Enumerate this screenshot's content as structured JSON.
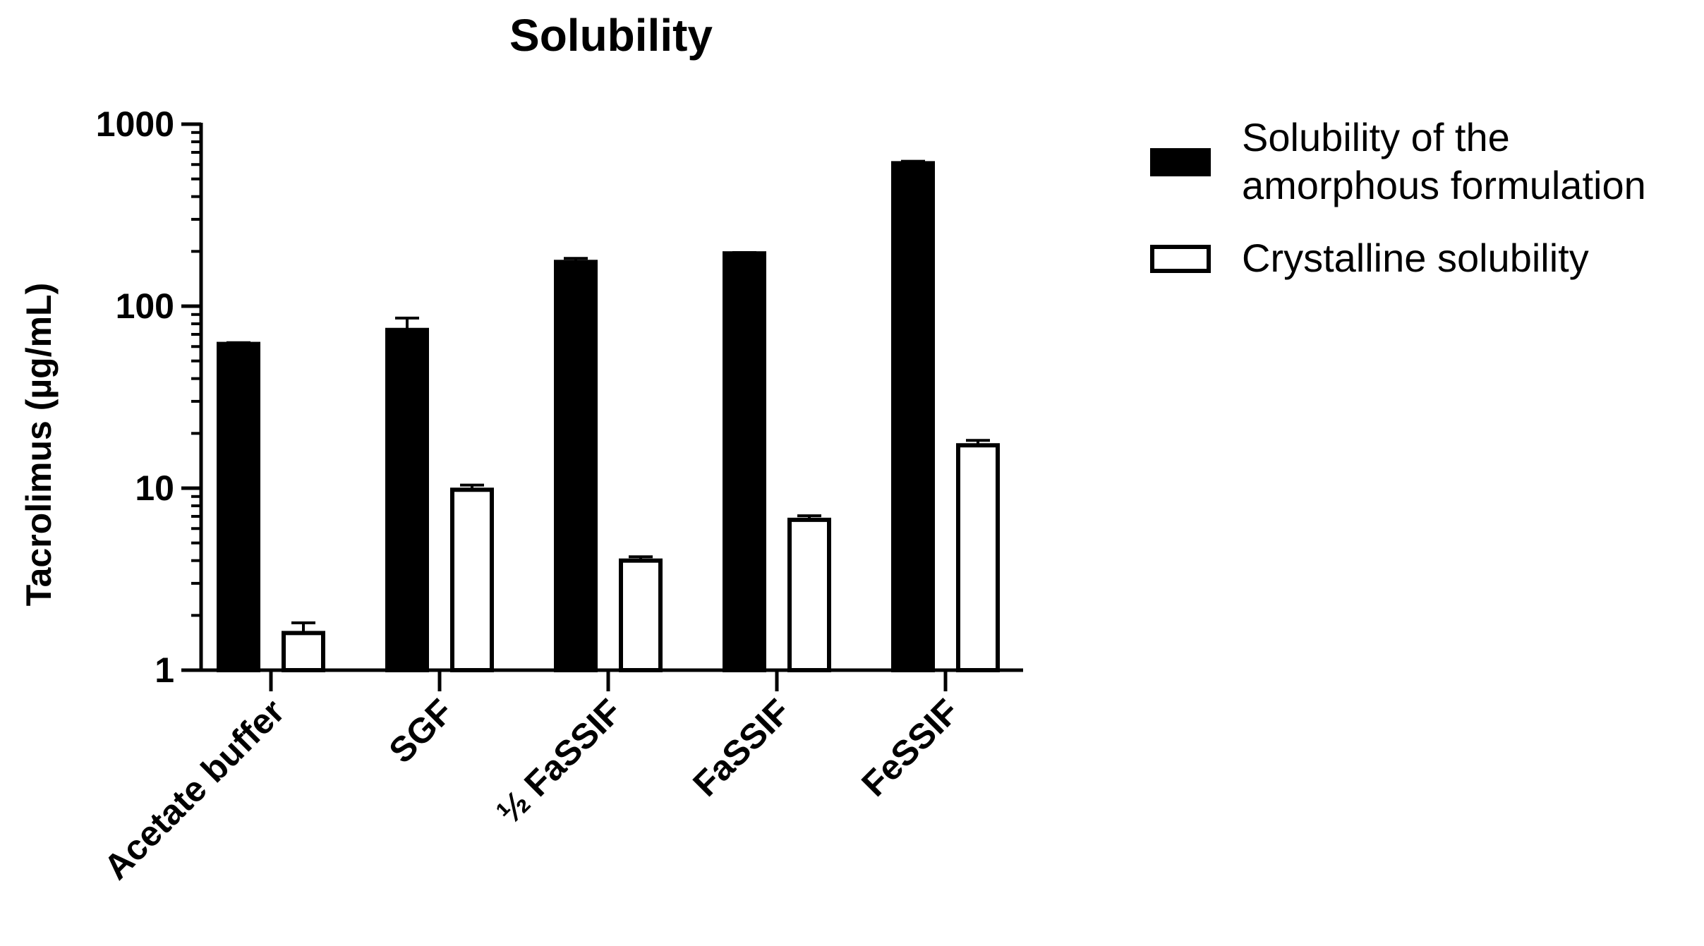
{
  "chart_data": {
    "type": "bar",
    "title": "Solubility",
    "xlabel": "",
    "ylabel": "Tacrolimus (µg/mL)",
    "yscale": "log",
    "ylim": [
      1,
      1000
    ],
    "yticks": [
      1,
      10,
      100,
      1000
    ],
    "ytick_labels": [
      "1",
      "10",
      "100",
      "1000"
    ],
    "grid": false,
    "legend_position": "right",
    "categories": [
      "Acetate buffer",
      "SGF",
      "½ FaSSIF",
      "FaSSIF",
      "FeSSIF"
    ],
    "series": [
      {
        "name": "Solubility of the amorphous formulation",
        "legend_lines": [
          "Solubility of the",
          "amorphous formulation"
        ],
        "fill": "#000000",
        "values": [
          62,
          74,
          175,
          195,
          610
        ],
        "errors": [
          1,
          12,
          8,
          2,
          15
        ]
      },
      {
        "name": "Crystalline solubility",
        "legend_lines": [
          "Crystalline solubility"
        ],
        "fill": "#ffffff",
        "values": [
          1.6,
          9.8,
          4.0,
          6.7,
          17.2
        ],
        "errors": [
          0.22,
          0.6,
          0.2,
          0.35,
          1.1
        ]
      }
    ]
  }
}
